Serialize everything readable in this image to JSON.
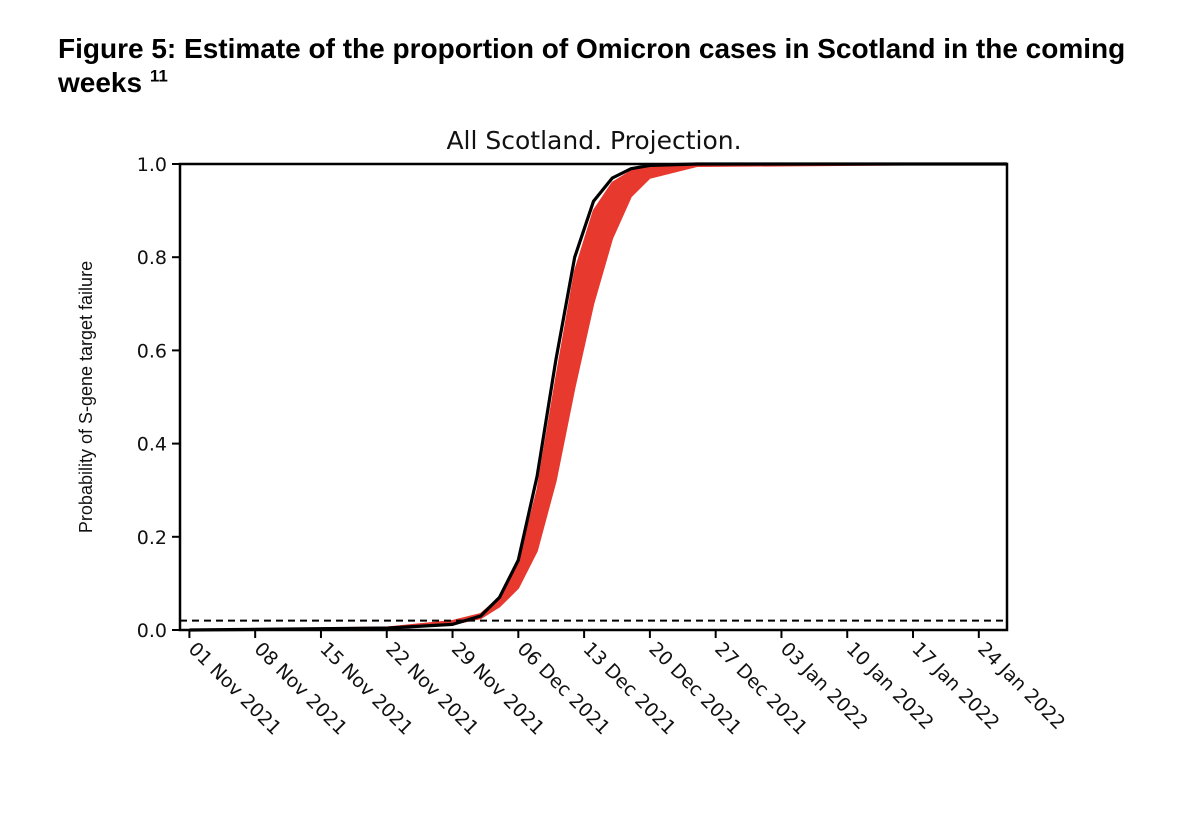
{
  "figure": {
    "caption": "Figure 5: Estimate of the proportion of Omicron cases in Scotland in the coming weeks",
    "footnote_ref": "11"
  },
  "chart_data": {
    "type": "line",
    "title": "All Scotland. Projection.",
    "ylabel": "Probability of S-gene target failure",
    "xlabel": "",
    "xlim": [
      "2021-10-31",
      "2022-01-27"
    ],
    "ylim": [
      0.0,
      1.0
    ],
    "x_ticks": [
      "01 Nov 2021",
      "08 Nov 2021",
      "15 Nov 2021",
      "22 Nov 2021",
      "29 Nov 2021",
      "06 Dec 2021",
      "13 Dec 2021",
      "20 Dec 2021",
      "27 Dec 2021",
      "03 Jan 2022",
      "10 Jan 2022",
      "17 Jan 2022",
      "24 Jan 2022"
    ],
    "y_ticks": [
      "0.0",
      "0.2",
      "0.4",
      "0.6",
      "0.8",
      "1.0"
    ],
    "grid": false,
    "colors": {
      "band": "#e8392f",
      "line": "#000000",
      "threshold": "#000000"
    },
    "series": [
      {
        "kind": "line",
        "x": [
          "2021-11-01",
          "2021-11-22",
          "2021-11-29",
          "2021-12-02",
          "2021-12-04",
          "2021-12-06",
          "2021-12-08",
          "2021-12-10",
          "2021-12-12",
          "2021-12-14",
          "2021-12-16",
          "2021-12-18",
          "2021-12-20",
          "2021-12-25",
          "2022-01-27"
        ],
        "y": [
          0.0,
          0.004,
          0.012,
          0.03,
          0.07,
          0.15,
          0.33,
          0.58,
          0.8,
          0.92,
          0.97,
          0.99,
          0.997,
          1.0,
          1.0
        ]
      },
      {
        "kind": "band",
        "x": [
          "2021-11-01",
          "2021-11-22",
          "2021-11-29",
          "2021-12-02",
          "2021-12-04",
          "2021-12-06",
          "2021-12-08",
          "2021-12-10",
          "2021-12-12",
          "2021-12-14",
          "2021-12-16",
          "2021-12-18",
          "2021-12-20",
          "2021-12-25",
          "2022-01-27"
        ],
        "upper": [
          0.0,
          0.006,
          0.02,
          0.035,
          0.07,
          0.14,
          0.3,
          0.54,
          0.77,
          0.9,
          0.96,
          0.985,
          0.995,
          1.0,
          1.0
        ],
        "lower": [
          0.0,
          0.004,
          0.012,
          0.025,
          0.05,
          0.09,
          0.17,
          0.32,
          0.52,
          0.7,
          0.84,
          0.93,
          0.97,
          0.995,
          1.0
        ]
      },
      {
        "kind": "hline",
        "y": 0.02
      }
    ]
  }
}
